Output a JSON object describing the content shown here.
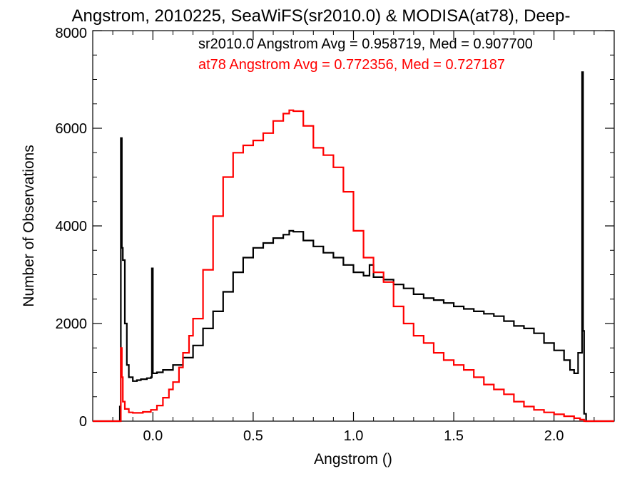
{
  "chart_data": {
    "type": "line",
    "title": "Angstrom, 2010225, SeaWiFS(sr2010.0) & MODISA(at78), Deep-",
    "xlabel": "Angstrom ()",
    "ylabel": "Number of Observations",
    "xlim": [
      -0.3,
      2.3
    ],
    "ylim": [
      0,
      8000
    ],
    "x_ticks": [
      0.0,
      0.5,
      1.0,
      1.5,
      2.0
    ],
    "x_tick_labels": [
      "0.0",
      "0.5",
      "1.0",
      "1.5",
      "2.0"
    ],
    "y_ticks": [
      0,
      2000,
      4000,
      6000,
      8000
    ],
    "y_tick_labels": [
      "0",
      "2000",
      "4000",
      "6000",
      "8000"
    ],
    "legend_position": "top-right",
    "annotations": [
      {
        "text": "sr2010.0 Angstrom Avg = 0.958719, Med = 0.907700",
        "color": "#000000"
      },
      {
        "text": "at78 Angstrom Avg = 0.772356, Med = 0.727187",
        "color": "#ff0000"
      }
    ],
    "series": [
      {
        "color": "#000000",
        "step": true,
        "points": [
          [
            -0.3,
            0
          ],
          [
            -0.17,
            0
          ],
          [
            -0.165,
            300
          ],
          [
            -0.16,
            5800
          ],
          [
            -0.155,
            3550
          ],
          [
            -0.15,
            3300
          ],
          [
            -0.14,
            2000
          ],
          [
            -0.13,
            1150
          ],
          [
            -0.12,
            900
          ],
          [
            -0.1,
            820
          ],
          [
            -0.08,
            840
          ],
          [
            -0.06,
            860
          ],
          [
            -0.03,
            880
          ],
          [
            -0.01,
            900
          ],
          [
            -0.005,
            3130
          ],
          [
            0.0,
            980
          ],
          [
            0.02,
            1000
          ],
          [
            0.05,
            1050
          ],
          [
            0.1,
            1150
          ],
          [
            0.15,
            1300
          ],
          [
            0.2,
            1550
          ],
          [
            0.25,
            1900
          ],
          [
            0.3,
            2250
          ],
          [
            0.35,
            2650
          ],
          [
            0.4,
            3050
          ],
          [
            0.45,
            3350
          ],
          [
            0.5,
            3550
          ],
          [
            0.55,
            3650
          ],
          [
            0.6,
            3750
          ],
          [
            0.65,
            3820
          ],
          [
            0.68,
            3900
          ],
          [
            0.7,
            3880
          ],
          [
            0.75,
            3700
          ],
          [
            0.8,
            3580
          ],
          [
            0.85,
            3450
          ],
          [
            0.9,
            3350
          ],
          [
            0.95,
            3200
          ],
          [
            1.0,
            3050
          ],
          [
            1.05,
            2980
          ],
          [
            1.08,
            3200
          ],
          [
            1.1,
            2950
          ],
          [
            1.15,
            2900
          ],
          [
            1.2,
            2800
          ],
          [
            1.25,
            2720
          ],
          [
            1.3,
            2600
          ],
          [
            1.35,
            2520
          ],
          [
            1.4,
            2480
          ],
          [
            1.45,
            2420
          ],
          [
            1.5,
            2350
          ],
          [
            1.55,
            2300
          ],
          [
            1.6,
            2250
          ],
          [
            1.65,
            2200
          ],
          [
            1.7,
            2150
          ],
          [
            1.75,
            2050
          ],
          [
            1.8,
            1950
          ],
          [
            1.85,
            1900
          ],
          [
            1.9,
            1800
          ],
          [
            1.95,
            1600
          ],
          [
            2.0,
            1450
          ],
          [
            2.05,
            1250
          ],
          [
            2.08,
            1050
          ],
          [
            2.1,
            980
          ],
          [
            2.12,
            1400
          ],
          [
            2.14,
            7150
          ],
          [
            2.145,
            1850
          ],
          [
            2.15,
            150
          ],
          [
            2.16,
            0
          ],
          [
            2.3,
            0
          ]
        ]
      },
      {
        "color": "#ff0000",
        "step": true,
        "points": [
          [
            -0.3,
            0
          ],
          [
            -0.17,
            0
          ],
          [
            -0.16,
            1500
          ],
          [
            -0.155,
            900
          ],
          [
            -0.15,
            400
          ],
          [
            -0.14,
            250
          ],
          [
            -0.12,
            180
          ],
          [
            -0.1,
            170
          ],
          [
            -0.05,
            190
          ],
          [
            -0.01,
            230
          ],
          [
            0.02,
            320
          ],
          [
            0.05,
            480
          ],
          [
            0.08,
            650
          ],
          [
            0.1,
            800
          ],
          [
            0.13,
            1100
          ],
          [
            0.15,
            1400
          ],
          [
            0.18,
            1750
          ],
          [
            0.2,
            2100
          ],
          [
            0.25,
            3100
          ],
          [
            0.3,
            4200
          ],
          [
            0.35,
            5000
          ],
          [
            0.4,
            5500
          ],
          [
            0.45,
            5650
          ],
          [
            0.5,
            5750
          ],
          [
            0.55,
            5900
          ],
          [
            0.6,
            6150
          ],
          [
            0.65,
            6300
          ],
          [
            0.68,
            6370
          ],
          [
            0.7,
            6350
          ],
          [
            0.75,
            6050
          ],
          [
            0.8,
            5600
          ],
          [
            0.85,
            5450
          ],
          [
            0.9,
            5200
          ],
          [
            0.95,
            4700
          ],
          [
            1.0,
            3900
          ],
          [
            1.05,
            3350
          ],
          [
            1.1,
            3050
          ],
          [
            1.15,
            2850
          ],
          [
            1.2,
            2350
          ],
          [
            1.25,
            2000
          ],
          [
            1.3,
            1750
          ],
          [
            1.35,
            1600
          ],
          [
            1.4,
            1400
          ],
          [
            1.45,
            1250
          ],
          [
            1.5,
            1150
          ],
          [
            1.55,
            1050
          ],
          [
            1.6,
            900
          ],
          [
            1.65,
            750
          ],
          [
            1.7,
            650
          ],
          [
            1.75,
            550
          ],
          [
            1.8,
            400
          ],
          [
            1.85,
            300
          ],
          [
            1.9,
            230
          ],
          [
            1.95,
            180
          ],
          [
            2.0,
            140
          ],
          [
            2.05,
            100
          ],
          [
            2.1,
            60
          ],
          [
            2.13,
            30
          ],
          [
            2.15,
            0
          ],
          [
            2.3,
            0
          ]
        ]
      }
    ]
  }
}
